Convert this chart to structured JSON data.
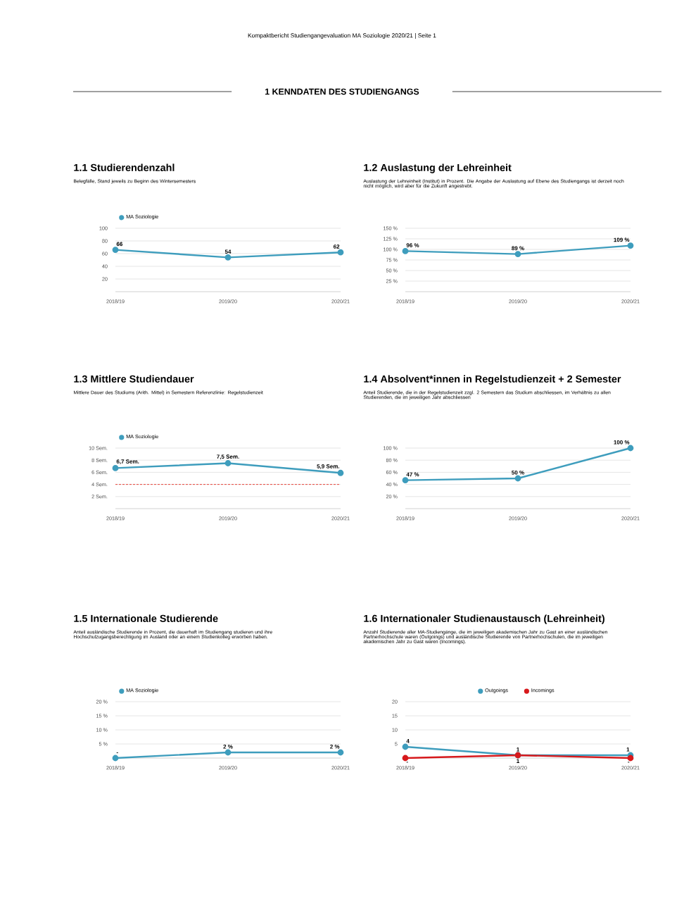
{
  "chart_data": [
    {
      "type": "line",
      "title": "1.1 Studierendenzahl",
      "subtitle": "Belegfälle, Stand jeweils zu Beginn des Wintersemesters",
      "annotations": [
        "Kompaktbericht Studiengangevaluation MA Soziologie 2020/21 | Seite 1",
        "1  KENNDATEN DES STUDIENGANGS"
      ],
      "categories": [
        "2018/19",
        "2019/20",
        "2020/21"
      ],
      "series": [
        {
          "name": "MA Soziologie",
          "color": "#3e9dbd",
          "values": [
            66,
            54,
            62
          ]
        }
      ],
      "ylim": [
        0,
        100
      ],
      "yticks": [
        20,
        40,
        60,
        80,
        100
      ],
      "grid": "y",
      "legend": "top left",
      "marker": "circle",
      "data_labels": true
    },
    {
      "type": "line",
      "title": "1.2  Auslastung der Lehreinheit",
      "subtitle": "Auslastung der Lehreinheit (Institut) in Prozent. Die Angabe der Auslastung auf Ebene des Studiengangs ist derzeit noch nicht möglich, wird aber für die Zukunft angestrebt.",
      "categories": [
        "2018/19",
        "2019/20",
        "2020/21"
      ],
      "series": [
        {
          "color": "#3e9dbd",
          "values": [
            96,
            89,
            109
          ],
          "value_labels": [
            "96 %",
            "89 %",
            "109 %"
          ]
        }
      ],
      "ylim": [
        0,
        150
      ],
      "yticks": [
        {
          "value": 25,
          "label": "25 %"
        },
        {
          "value": 50,
          "label": "50 %"
        },
        {
          "value": 75,
          "label": "75 %"
        },
        {
          "value": 100,
          "label": "100 %"
        },
        {
          "value": 125,
          "label": "125 %"
        },
        {
          "value": 150,
          "label": "150 %"
        }
      ],
      "grid": "y",
      "marker": "circle"
    },
    {
      "type": "line",
      "title": "1.3 Mittlere Studiendauer",
      "subtitle": "Mittlere Dauer des Studiums (Arith. Mittel) in Semestern Referenzlinie: Regelstudienzeit",
      "categories": [
        "2018/19",
        "2019/20",
        "2020/21"
      ],
      "series": [
        {
          "name": "MA Soziologie",
          "color": "#3e9dbd",
          "values": [
            6.7,
            7.5,
            5.9
          ],
          "value_labels": [
            "6,7 Sem.",
            "7,5 Sem.",
            "5,9 Sem."
          ]
        }
      ],
      "ref_lines": [
        {
          "axis": "y",
          "value": 4,
          "color": "#e8453c",
          "line_style": "dashed"
        }
      ],
      "ylim": [
        0,
        10
      ],
      "yticks": [
        {
          "value": 2,
          "label": "2 Sem."
        },
        {
          "value": 4,
          "label": "4 Sem."
        },
        {
          "value": 6,
          "label": "6 Sem."
        },
        {
          "value": 8,
          "label": "8 Sem."
        },
        {
          "value": 10,
          "label": "10 Sem."
        }
      ],
      "grid": "y",
      "legend": "top left",
      "marker": "circle"
    },
    {
      "type": "line",
      "title": "1.4  Absolvent*innen in Regelstudienzeit + 2 Semester",
      "subtitle": "Anteil Studierende, die in der Regelstudienzeit zzgl. 2 Semestern das Studium abschliessen, im Verhältnis zu allen Studierenden, die im jeweiligen Jahr abschliessen",
      "categories": [
        "2018/19",
        "2019/20",
        "2020/21"
      ],
      "series": [
        {
          "color": "#3e9dbd",
          "values": [
            47,
            50,
            100
          ],
          "value_labels": [
            "47 %",
            "50 %",
            "100 %"
          ]
        }
      ],
      "ylim": [
        0,
        100
      ],
      "yticks": [
        {
          "value": 20,
          "label": "20 %"
        },
        {
          "value": 40,
          "label": "40 %"
        },
        {
          "value": 60,
          "label": "60 %"
        },
        {
          "value": 80,
          "label": "80 %"
        },
        {
          "value": 100,
          "label": "100 %"
        }
      ],
      "grid": "y",
      "marker": "circle"
    },
    {
      "type": "line",
      "title": "1.5 Internationale Studierende",
      "subtitle": "Anteil ausländische Studierende in Prozent, die dauerhaft im Studiengang studieren und ihre Hochschulzugangsberechtigung im Ausland oder an einem Studienkolleg erworben haben.",
      "categories": [
        "2018/19",
        "2019/20",
        "2020/21"
      ],
      "series": [
        {
          "name": "MA Soziologie",
          "color": "#3e9dbd",
          "values": [
            0,
            2,
            2
          ],
          "value_labels": [
            "-",
            "2 %",
            "2 %"
          ]
        }
      ],
      "ylim": [
        0,
        20
      ],
      "yticks": [
        {
          "value": 5,
          "label": "5 %"
        },
        {
          "value": 10,
          "label": "10 %"
        },
        {
          "value": 15,
          "label": "15 %"
        },
        {
          "value": 20,
          "label": "20 %"
        }
      ],
      "grid": "y",
      "legend": "top left",
      "marker": "circle"
    },
    {
      "type": "line",
      "title": "1.6  Internationaler Studienaustausch (Lehreinheit)",
      "subtitle": "Anzahl Studierende aller MA-Studiengänge, die im jeweiligen akademischen Jahr zu Gast an einer ausländischen Partnerhochschule waren (Outgoings) und ausländische Studierende von Partnerhochschulen, die im jeweiligen akademischen Jahr zu Gast waren (Incomings).",
      "categories": [
        "2018/19",
        "2019/20",
        "2020/21"
      ],
      "series": [
        {
          "name": "Outgoings",
          "color": "#3e9dbd",
          "values": [
            4,
            1,
            1
          ],
          "value_labels": [
            "4",
            "1",
            "1"
          ]
        },
        {
          "name": "Incomings",
          "color": "#d7191c",
          "values": [
            0,
            1,
            0
          ],
          "value_labels": [
            "-",
            "1",
            "-"
          ]
        }
      ],
      "ylim": [
        0,
        20
      ],
      "yticks": [
        5,
        10,
        15,
        20
      ],
      "grid": "y",
      "legend": "top",
      "marker": "circle"
    }
  ]
}
